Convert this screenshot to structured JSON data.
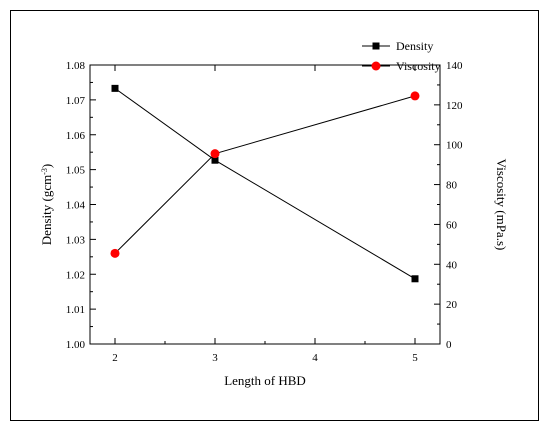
{
  "chart_data": {
    "type": "line",
    "title": "",
    "xlabel": "Length of HBD",
    "ylabel_left": {
      "main": "Density (gcm",
      "sup": "-3",
      "end": ")"
    },
    "ylabel_right": "Viscosity (mPa.s)",
    "x_ticks": [
      2,
      3,
      4,
      5
    ],
    "x_tick_labels": [
      "2",
      "3",
      "4",
      "5"
    ],
    "xlim": [
      1.75,
      5.25
    ],
    "ylim_left": [
      1.0,
      1.08
    ],
    "y_left_ticks": [
      1.0,
      1.01,
      1.02,
      1.03,
      1.04,
      1.05,
      1.06,
      1.07,
      1.08
    ],
    "y_left_tick_labels": [
      "1.00",
      "1.01",
      "1.02",
      "1.03",
      "1.04",
      "1.05",
      "1.06",
      "1.07",
      "1.08"
    ],
    "ylim_right": [
      0,
      140
    ],
    "y_right_ticks": [
      0,
      20,
      40,
      60,
      80,
      100,
      120,
      140
    ],
    "y_right_tick_labels": [
      "0",
      "20",
      "40",
      "60",
      "80",
      "100",
      "120",
      "140"
    ],
    "grid": false,
    "legend_position": "top-right",
    "series": [
      {
        "name": "Density",
        "axis": "left",
        "marker": "square",
        "color": "#000000",
        "x": [
          2,
          3,
          5
        ],
        "y": [
          1.0733,
          1.0527,
          1.0187
        ]
      },
      {
        "name": "Viscosity",
        "axis": "right",
        "marker": "circle",
        "color": "#ff0000",
        "x": [
          2,
          3,
          5
        ],
        "y": [
          45.5,
          95.5,
          124.5
        ]
      }
    ]
  }
}
